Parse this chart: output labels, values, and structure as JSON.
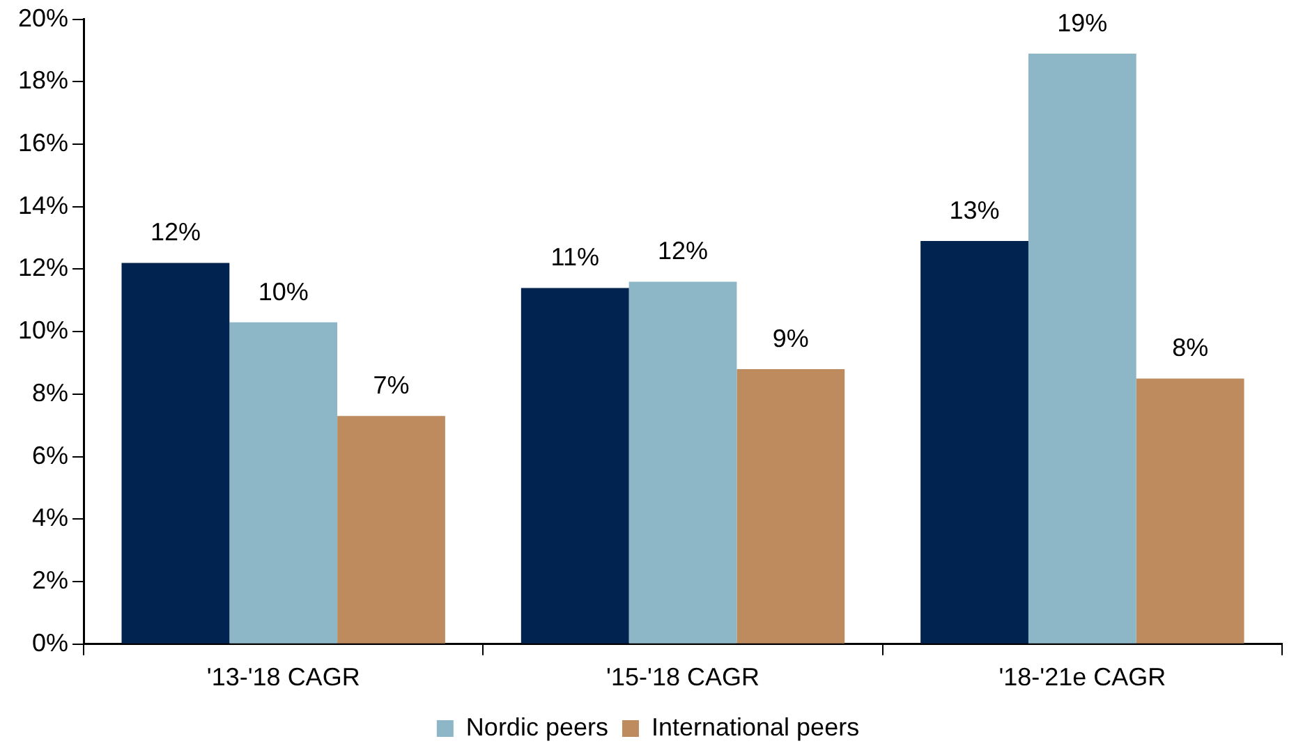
{
  "chart_data": {
    "type": "bar",
    "categories": [
      "'13-'18 CAGR",
      "'15-'18 CAGR",
      "'18-'21e CAGR"
    ],
    "series": [
      {
        "color": "#01234f",
        "values": [
          12.2,
          11.4,
          12.9
        ],
        "value_labels": [
          "12%",
          "11%",
          "13%"
        ]
      },
      {
        "name": "Nordic peers",
        "color": "#8db6c6",
        "values": [
          10.3,
          11.6,
          18.9
        ],
        "value_labels": [
          "10%",
          "12%",
          "19%"
        ]
      },
      {
        "name": "International peers",
        "color": "#be8b5e",
        "values": [
          7.3,
          8.8,
          8.5
        ],
        "value_labels": [
          "7%",
          "9%",
          "8%"
        ]
      }
    ],
    "ylim": [
      0,
      20
    ],
    "yticks": [
      {
        "value": 0,
        "label": "0%"
      },
      {
        "value": 2,
        "label": "2%"
      },
      {
        "value": 4,
        "label": "4%"
      },
      {
        "value": 6,
        "label": "6%"
      },
      {
        "value": 8,
        "label": "8%"
      },
      {
        "value": 10,
        "label": "10%"
      },
      {
        "value": 12,
        "label": "12%"
      },
      {
        "value": 14,
        "label": "14%"
      },
      {
        "value": 16,
        "label": "16%"
      },
      {
        "value": 18,
        "label": "18%"
      },
      {
        "value": 20,
        "label": "20%"
      }
    ],
    "grid": false,
    "legend": "bottom"
  }
}
